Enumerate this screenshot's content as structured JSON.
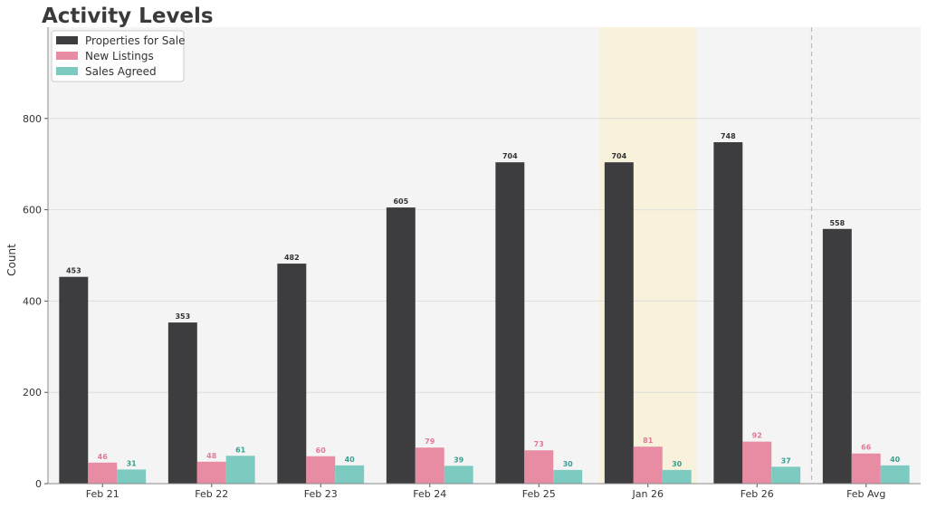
{
  "chart_data": {
    "type": "bar",
    "title": "Activity Levels",
    "xlabel": "",
    "ylabel": "Count",
    "ylim": [
      0,
      1000
    ],
    "yticks": [
      0,
      200,
      400,
      600,
      800
    ],
    "grid": true,
    "legend_position": "top-left",
    "categories": [
      "Feb 21",
      "Feb 22",
      "Feb 23",
      "Feb 24",
      "Feb 25",
      "Jan 26",
      "Feb 26",
      "Feb Avg"
    ],
    "highlighted_category": "Jan 26",
    "average_separator_before": "Feb Avg",
    "series": [
      {
        "name": "Properties for Sale",
        "color": "#3d3d40",
        "label_color": "#333333",
        "values": [
          453,
          353,
          482,
          605,
          704,
          704,
          748,
          558
        ]
      },
      {
        "name": "New Listings",
        "color": "#e88ca3",
        "label_color": "#e07a95",
        "values": [
          46,
          48,
          60,
          79,
          73,
          81,
          92,
          66
        ]
      },
      {
        "name": "Sales Agreed",
        "color": "#7dcbc0",
        "label_color": "#3a9e8f",
        "values": [
          31,
          61,
          40,
          39,
          30,
          30,
          37,
          40
        ]
      }
    ],
    "colors": {
      "plot_background": "#f4f4f4",
      "highlight": "#f8f1dc",
      "grid": "#dddddd",
      "separator": "#bbbbbb"
    }
  }
}
